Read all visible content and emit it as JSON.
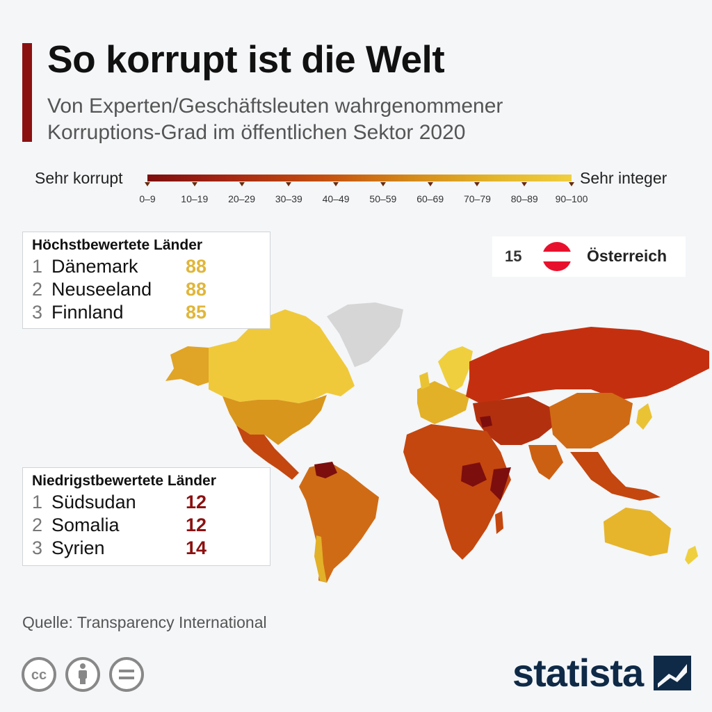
{
  "header": {
    "title": "So korrupt ist die Welt",
    "subtitle_line1": "Von Experten/Geschäftsleuten wahrgenommener",
    "subtitle_line2": "Korruptions-Grad im öffentlichen Sektor 2020"
  },
  "legend": {
    "left_label": "Sehr korrupt",
    "right_label": "Sehr integer",
    "ranges": [
      "0–9",
      "10–19",
      "20–29",
      "30–39",
      "40–49",
      "50–59",
      "60–69",
      "70–79",
      "80–89",
      "90–100"
    ],
    "colors": [
      "#7d0e0e",
      "#9a1c10",
      "#b3300f",
      "#c4470f",
      "#cc6012",
      "#d47816",
      "#db9a1e",
      "#e2b128",
      "#eac334",
      "#f0cf3e"
    ]
  },
  "top_countries": {
    "title": "Höchstbewertete Länder",
    "items": [
      {
        "rank": "1",
        "name": "Dänemark",
        "score": "88"
      },
      {
        "rank": "2",
        "name": "Neuseeland",
        "score": "88"
      },
      {
        "rank": "3",
        "name": "Finnland",
        "score": "85"
      }
    ]
  },
  "bottom_countries": {
    "title": "Niedrigstbewertete Länder",
    "items": [
      {
        "rank": "1",
        "name": "Südsudan",
        "score": "12"
      },
      {
        "rank": "2",
        "name": "Somalia",
        "score": "12"
      },
      {
        "rank": "3",
        "name": "Syrien",
        "score": "14"
      }
    ]
  },
  "highlight": {
    "rank": "15",
    "country": "Österreich",
    "flag_colors": [
      "#e8112d",
      "#ffffff",
      "#e8112d"
    ]
  },
  "footer": {
    "source": "Quelle: Transparency International",
    "brand": "statista"
  },
  "colors": {
    "accent": "#8b1111",
    "high_score": "#e0b63a",
    "low_score": "#8b1111",
    "brand": "#0f2a47"
  }
}
